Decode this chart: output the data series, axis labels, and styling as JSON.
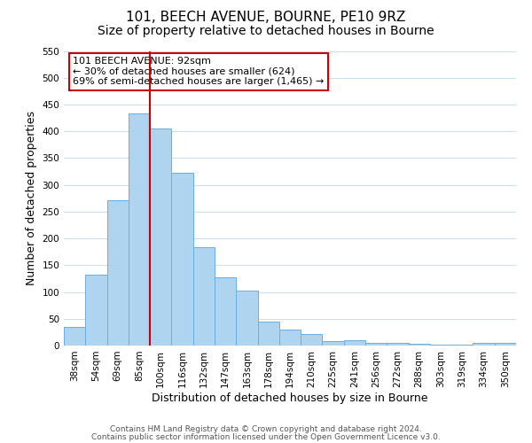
{
  "title": "101, BEECH AVENUE, BOURNE, PE10 9RZ",
  "subtitle": "Size of property relative to detached houses in Bourne",
  "xlabel": "Distribution of detached houses by size in Bourne",
  "ylabel": "Number of detached properties",
  "bar_labels": [
    "38sqm",
    "54sqm",
    "69sqm",
    "85sqm",
    "100sqm",
    "116sqm",
    "132sqm",
    "147sqm",
    "163sqm",
    "178sqm",
    "194sqm",
    "210sqm",
    "225sqm",
    "241sqm",
    "256sqm",
    "272sqm",
    "288sqm",
    "303sqm",
    "319sqm",
    "334sqm",
    "350sqm"
  ],
  "bar_values": [
    35,
    133,
    272,
    433,
    405,
    323,
    184,
    128,
    103,
    45,
    30,
    21,
    8,
    10,
    5,
    5,
    3,
    2,
    2,
    5,
    5
  ],
  "bar_color": "#aed4f0",
  "bar_edge_color": "#6aaee0",
  "property_line_x": 3.5,
  "annotation_text_line1": "101 BEECH AVENUE: 92sqm",
  "annotation_text_line2": "← 30% of detached houses are smaller (624)",
  "annotation_text_line3": "69% of semi-detached houses are larger (1,465) →",
  "annotation_box_color": "#ffffff",
  "annotation_box_edge": "#cc0000",
  "red_line_color": "#cc0000",
  "ylim": [
    0,
    550
  ],
  "yticks": [
    0,
    50,
    100,
    150,
    200,
    250,
    300,
    350,
    400,
    450,
    500,
    550
  ],
  "footer_line1": "Contains HM Land Registry data © Crown copyright and database right 2024.",
  "footer_line2": "Contains public sector information licensed under the Open Government Licence v3.0.",
  "background_color": "#ffffff",
  "grid_color": "#ccdff0",
  "title_fontsize": 11,
  "subtitle_fontsize": 10,
  "axis_label_fontsize": 9,
  "tick_fontsize": 7.5,
  "footer_fontsize": 6.5,
  "annotation_fontsize": 8
}
